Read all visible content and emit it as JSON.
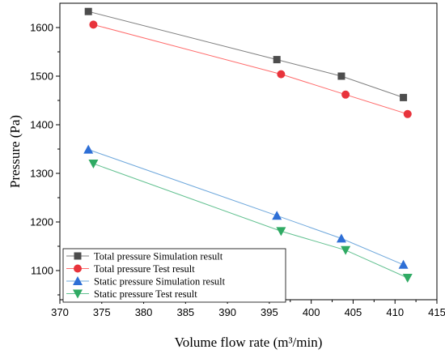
{
  "chart_data": {
    "type": "line",
    "xlabel": "Volume flow rate (m³/min)",
    "ylabel": "Pressure (Pa)",
    "xlim": [
      370,
      415
    ],
    "ylim": [
      1040,
      1650
    ],
    "x_ticks": [
      "370",
      "375",
      "380",
      "385",
      "390",
      "395",
      "400",
      "405",
      "410",
      "415"
    ],
    "y_ticks": [
      "1100",
      "1200",
      "1300",
      "1400",
      "1500",
      "1600"
    ],
    "legend_position": "bottom-left",
    "series": [
      {
        "name": "Total pressure Simulation result",
        "marker": "square",
        "line_color": "#7f7f7f",
        "marker_color": "#4d4d4d",
        "x": [
          373.4,
          395.9,
          403.6,
          411.0
        ],
        "y": [
          1633,
          1534,
          1500,
          1456
        ]
      },
      {
        "name": "Total pressure Test result",
        "marker": "circle",
        "line_color": "#ff6b6b",
        "marker_color": "#e8333b",
        "x": [
          374.0,
          396.4,
          404.1,
          411.5
        ],
        "y": [
          1606,
          1504,
          1462,
          1422
        ]
      },
      {
        "name": "Static pressure Simulation result",
        "marker": "triangle-up",
        "line_color": "#6fa8dc",
        "marker_color": "#2e6fd6",
        "x": [
          373.4,
          395.9,
          403.6,
          411.0
        ],
        "y": [
          1349,
          1213,
          1166,
          1112
        ]
      },
      {
        "name": "Static pressure Test result",
        "marker": "triangle-down",
        "line_color": "#63c191",
        "marker_color": "#2faa63",
        "x": [
          374.0,
          396.4,
          404.1,
          411.5
        ],
        "y": [
          1320,
          1181,
          1142,
          1085
        ]
      }
    ]
  }
}
